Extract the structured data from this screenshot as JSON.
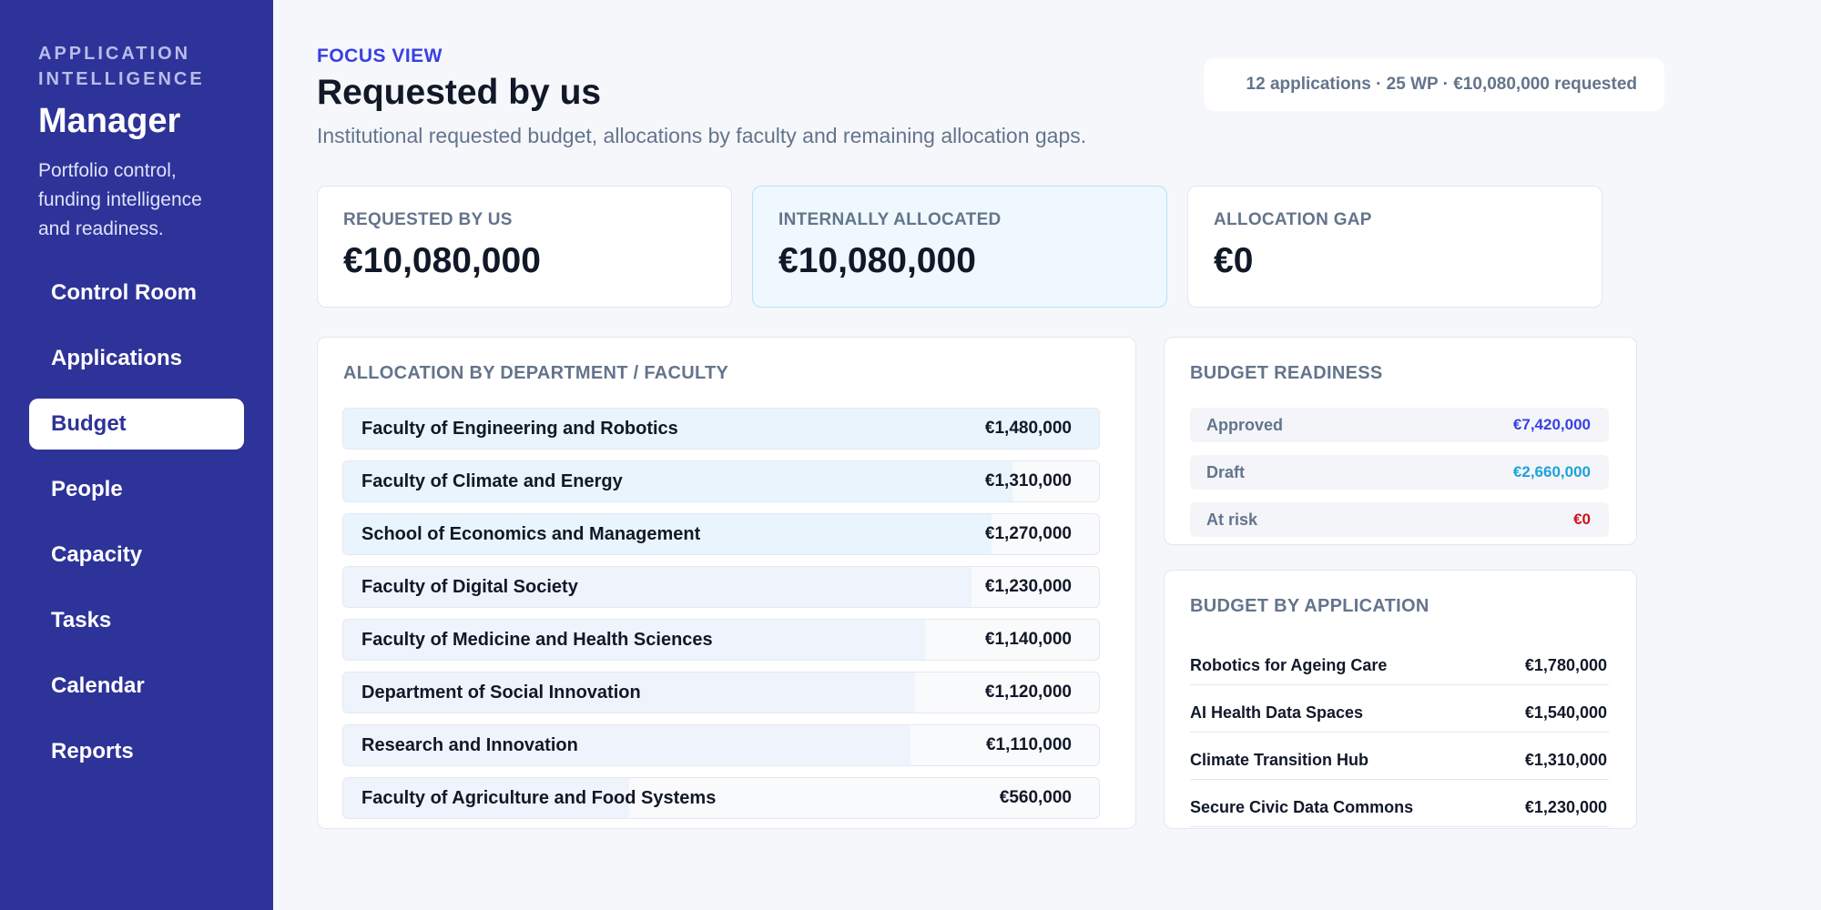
{
  "colors": {
    "sidebar_bg": "#2e3399",
    "accent": "#3a40e0",
    "approved": "#3a40e0",
    "draft": "#1ca2d9",
    "at_risk": "#d0101b"
  },
  "sidebar": {
    "eyebrow": "APPLICATION INTELLIGENCE",
    "title": "Manager",
    "description": "Portfolio control, funding intelligence and readiness.",
    "nav": [
      {
        "label": "Control Room",
        "active": false
      },
      {
        "label": "Applications",
        "active": false
      },
      {
        "label": "Budget",
        "active": true
      },
      {
        "label": "People",
        "active": false
      },
      {
        "label": "Capacity",
        "active": false
      },
      {
        "label": "Tasks",
        "active": false
      },
      {
        "label": "Calendar",
        "active": false
      },
      {
        "label": "Reports",
        "active": false
      }
    ]
  },
  "header": {
    "eyebrow": "FOCUS VIEW",
    "title": "Requested by us",
    "subtitle": "Institutional requested budget, allocations by faculty and remaining allocation gaps.",
    "summary": "12 applications · 25 WP · €10,080,000 requested"
  },
  "kpis": [
    {
      "label": "REQUESTED BY US",
      "value": "€10,080,000",
      "highlight": false
    },
    {
      "label": "INTERNALLY ALLOCATED",
      "value": "€10,080,000",
      "highlight": true
    },
    {
      "label": "ALLOCATION GAP",
      "value": "€0",
      "highlight": false
    }
  ],
  "departments": {
    "title": "ALLOCATION BY DEPARTMENT / FACULTY",
    "rows": [
      {
        "name": "Faculty of Engineering and Robotics",
        "value": "€1,480,000",
        "share": 1.0
      },
      {
        "name": "Faculty of Climate and Energy",
        "value": "€1,310,000",
        "share": 0.885
      },
      {
        "name": "School of Economics and Management",
        "value": "€1,270,000",
        "share": 0.858
      },
      {
        "name": "Faculty of Digital Society",
        "value": "€1,230,000",
        "share": 0.831
      },
      {
        "name": "Faculty of Medicine and Health Sciences",
        "value": "€1,140,000",
        "share": 0.77
      },
      {
        "name": "Department of Social Innovation",
        "value": "€1,120,000",
        "share": 0.757
      },
      {
        "name": "Research and Innovation",
        "value": "€1,110,000",
        "share": 0.75
      },
      {
        "name": "Faculty of Agriculture and Food Systems",
        "value": "€560,000",
        "share": 0.378
      }
    ]
  },
  "readiness": {
    "title": "BUDGET READINESS",
    "rows": [
      {
        "label": "Approved",
        "value": "€7,420,000",
        "color": "#3a40e0"
      },
      {
        "label": "Draft",
        "value": "€2,660,000",
        "color": "#1ca2d9"
      },
      {
        "label": "At risk",
        "value": "€0",
        "color": "#d0101b"
      }
    ]
  },
  "applications": {
    "title": "BUDGET BY APPLICATION",
    "rows": [
      {
        "name": "Robotics for Ageing Care",
        "value": "€1,780,000"
      },
      {
        "name": "AI Health Data Spaces",
        "value": "€1,540,000"
      },
      {
        "name": "Climate Transition Hub",
        "value": "€1,310,000"
      },
      {
        "name": "Secure Civic Data Commons",
        "value": "€1,230,000"
      }
    ]
  }
}
